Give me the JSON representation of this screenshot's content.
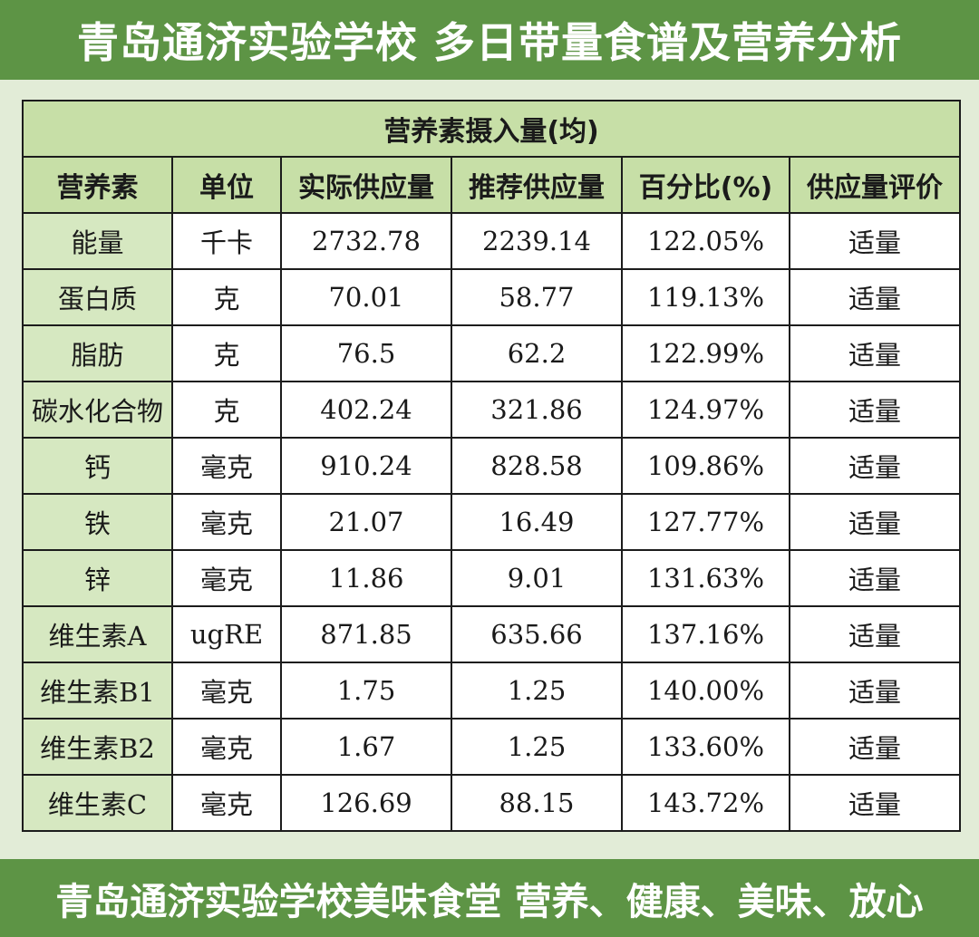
{
  "header": {
    "title": "青岛通济实验学校 多日带量食谱及营养分析"
  },
  "table": {
    "caption": "营养素摄入量(均)",
    "columns": [
      "营养素",
      "单位",
      "实际供应量",
      "推荐供应量",
      "百分比(%)",
      "供应量评价"
    ],
    "rows": [
      [
        "能量",
        "千卡",
        "2732.78",
        "2239.14",
        "122.05%",
        "适量"
      ],
      [
        "蛋白质",
        "克",
        "70.01",
        "58.77",
        "119.13%",
        "适量"
      ],
      [
        "脂肪",
        "克",
        "76.5",
        "62.2",
        "122.99%",
        "适量"
      ],
      [
        "碳水化合物",
        "克",
        "402.24",
        "321.86",
        "124.97%",
        "适量"
      ],
      [
        "钙",
        "毫克",
        "910.24",
        "828.58",
        "109.86%",
        "适量"
      ],
      [
        "铁",
        "毫克",
        "21.07",
        "16.49",
        "127.77%",
        "适量"
      ],
      [
        "锌",
        "毫克",
        "11.86",
        "9.01",
        "131.63%",
        "适量"
      ],
      [
        "维生素A",
        "ugRE",
        "871.85",
        "635.66",
        "137.16%",
        "适量"
      ],
      [
        "维生素B1",
        "毫克",
        "1.75",
        "1.25",
        "140.00%",
        "适量"
      ],
      [
        "维生素B2",
        "毫克",
        "1.67",
        "1.25",
        "133.60%",
        "适量"
      ],
      [
        "维生素C",
        "毫克",
        "126.69",
        "88.15",
        "143.72%",
        "适量"
      ]
    ]
  },
  "footer": {
    "slogan": "青岛通济实验学校美味食堂 营养、健康、美味、放心"
  },
  "colors": {
    "banner": "#5d9445",
    "page_background": "#e2ecd7",
    "header_cell": "#c7dfa7",
    "name_cell": "#d6e8c1"
  }
}
